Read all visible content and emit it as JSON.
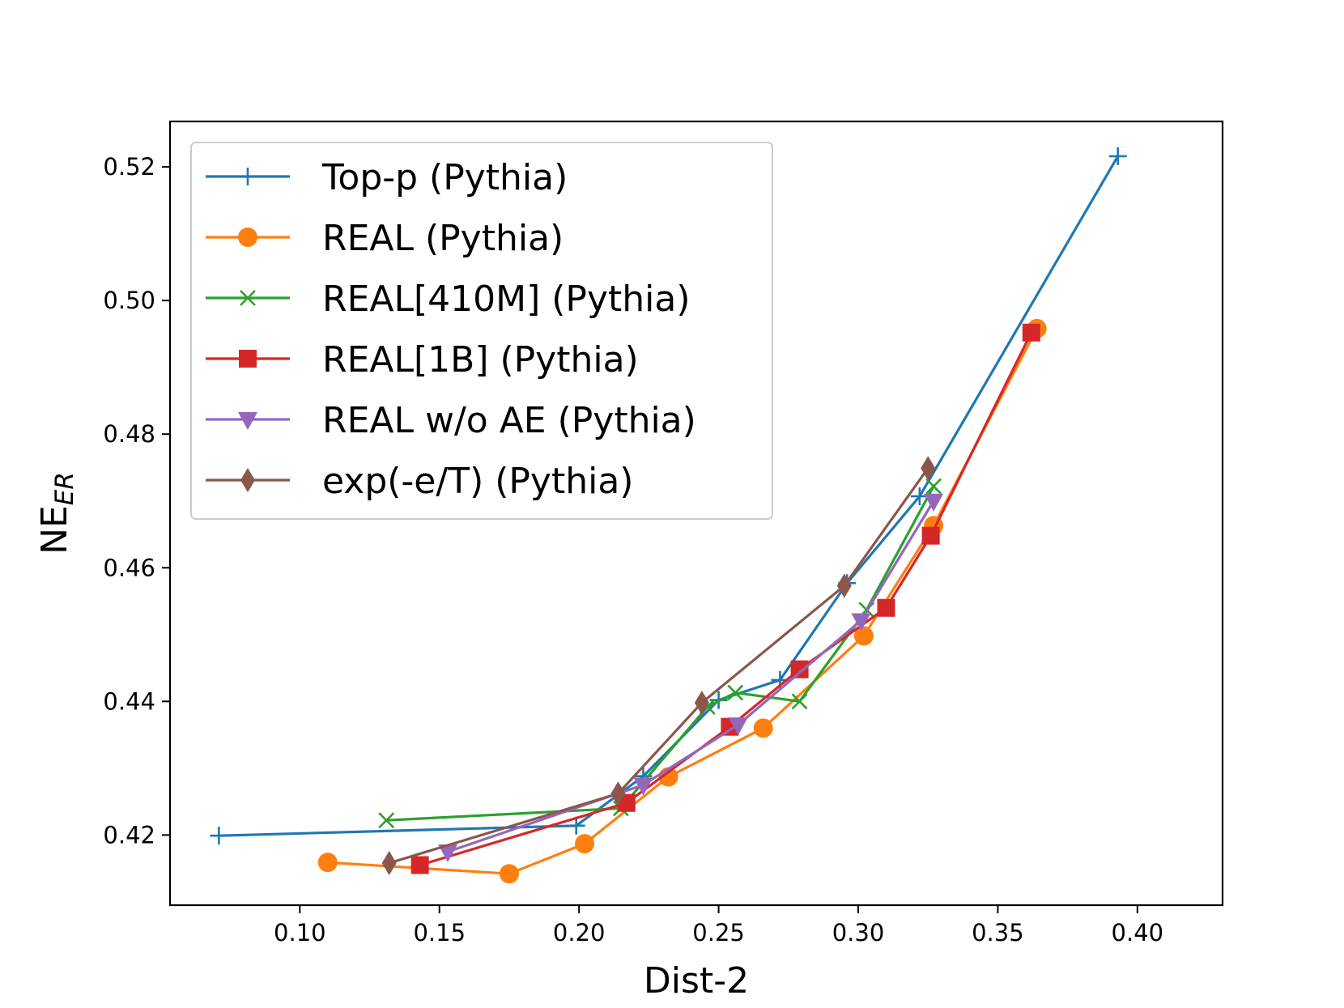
{
  "chart_data": {
    "type": "line",
    "title": "",
    "xlabel": "Dist-2",
    "ylabel_main": "NE",
    "ylabel_sub": "ER",
    "xlim": [
      0.0535,
      0.4305
    ],
    "ylim": [
      0.4095,
      0.5268
    ],
    "xticks": [
      0.1,
      0.15,
      0.2,
      0.25,
      0.3,
      0.35,
      0.4
    ],
    "xtick_labels": [
      "0.10",
      "0.15",
      "0.20",
      "0.25",
      "0.30",
      "0.35",
      "0.40"
    ],
    "yticks": [
      0.42,
      0.44,
      0.46,
      0.48,
      0.5,
      0.52
    ],
    "ytick_labels": [
      "0.42",
      "0.44",
      "0.46",
      "0.48",
      "0.50",
      "0.52"
    ],
    "grid": false,
    "legend_position": "top-left",
    "series": [
      {
        "name": "Top-p (Pythia)",
        "color": "#1f77b4",
        "marker": "plus",
        "x": [
          0.071,
          0.199,
          0.223,
          0.25,
          0.272,
          0.296,
          0.322,
          0.393
        ],
        "y": [
          0.4199,
          0.4214,
          0.4288,
          0.4402,
          0.4432,
          0.4577,
          0.4707,
          0.5216
        ]
      },
      {
        "name": "REAL (Pythia)",
        "color": "#ff7f0e",
        "marker": "circle",
        "x": [
          0.11,
          0.175,
          0.202,
          0.232,
          0.266,
          0.302,
          0.327,
          0.364
        ],
        "y": [
          0.4159,
          0.4142,
          0.4187,
          0.4287,
          0.436,
          0.4498,
          0.4663,
          0.4958
        ]
      },
      {
        "name": "REAL[410M] (Pythia)",
        "color": "#2ca02c",
        "marker": "x",
        "x": [
          0.131,
          0.215,
          0.246,
          0.256,
          0.279,
          0.303,
          0.327
        ],
        "y": [
          0.4222,
          0.424,
          0.4392,
          0.4413,
          0.44,
          0.4537,
          0.4722
        ]
      },
      {
        "name": "REAL[1B] (Pythia)",
        "color": "#d62728",
        "marker": "square",
        "x": [
          0.143,
          0.217,
          0.254,
          0.279,
          0.31,
          0.326,
          0.362
        ],
        "y": [
          0.4155,
          0.4248,
          0.4362,
          0.4448,
          0.454,
          0.4648,
          0.4952
        ]
      },
      {
        "name": "REAL w/o AE (Pythia)",
        "color": "#9467bd",
        "marker": "triangle-down",
        "x": [
          0.153,
          0.223,
          0.257,
          0.301,
          0.327
        ],
        "y": [
          0.4175,
          0.4275,
          0.4365,
          0.4521,
          0.47
        ]
      },
      {
        "name": "exp(-e/T) (Pythia)",
        "color": "#8c564b",
        "marker": "diamond",
        "x": [
          0.132,
          0.214,
          0.244,
          0.295,
          0.325
        ],
        "y": [
          0.4158,
          0.4262,
          0.4398,
          0.4573,
          0.4749
        ]
      }
    ]
  }
}
